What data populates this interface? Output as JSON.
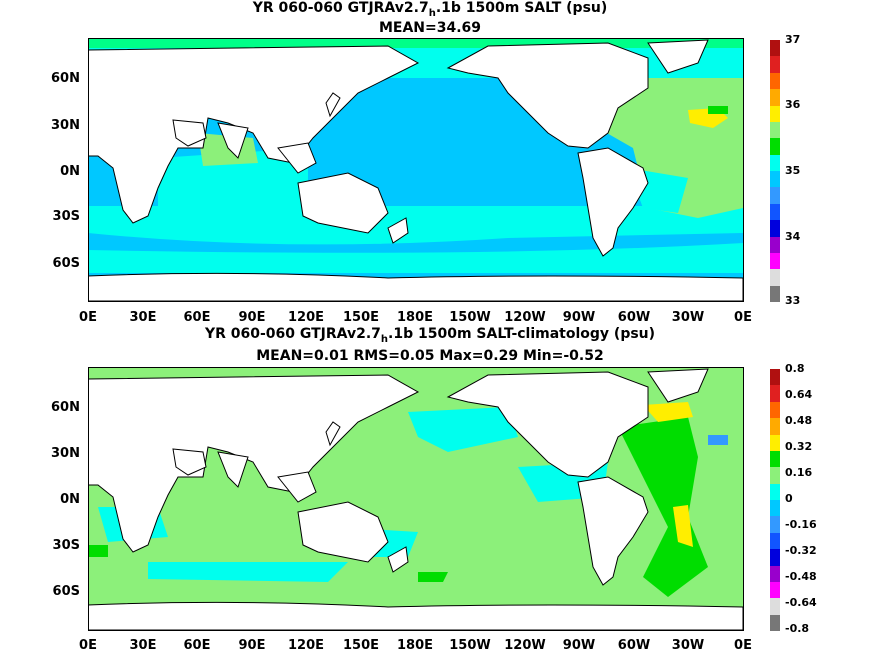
{
  "panel1": {
    "title_pre": "YR 060-060 GTJRAv2.7",
    "title_sub": "h",
    "title_post": ".1b 1500m SALT (psu)",
    "stats": "MEAN=34.69",
    "colorbar_labels": [
      "37",
      "36",
      "35",
      "34",
      "33"
    ],
    "colorbar_colors": [
      "#b01010",
      "#e02020",
      "#ff6600",
      "#ffaa00",
      "#ffee00",
      "#8cf07a",
      "#00dd00",
      "#00ffee",
      "#00c8ff",
      "#3399ff",
      "#1155ff",
      "#0000dd",
      "#9900cc",
      "#ff00ff",
      "#dddddd",
      "#777777"
    ]
  },
  "panel2": {
    "title_pre": "YR 060-060 GTJRAv2.7",
    "title_sub": "h",
    "title_post": ".1b 1500m SALT-climatology (psu)",
    "stats": "MEAN=0.01   RMS=0.05   Max=0.29   Min=-0.52",
    "colorbar_labels": [
      "0.8",
      "0.64",
      "0.48",
      "0.32",
      "0.16",
      "0",
      "-0.16",
      "-0.32",
      "-0.48",
      "-0.64",
      "-0.8"
    ],
    "colorbar_colors": [
      "#b01010",
      "#e02020",
      "#ff6600",
      "#ffaa00",
      "#ffee00",
      "#00dd00",
      "#8cf07a",
      "#00ffee",
      "#00c8ff",
      "#3399ff",
      "#1155ff",
      "#0000dd",
      "#9900cc",
      "#ff00ff",
      "#dddddd",
      "#777777"
    ]
  },
  "axes": {
    "y_ticks": [
      "60N",
      "30N",
      "0N",
      "30S",
      "60S"
    ],
    "x_ticks": [
      "0E",
      "30E",
      "60E",
      "90E",
      "120E",
      "150E",
      "180E",
      "150W",
      "120W",
      "90W",
      "60W",
      "30W",
      "0E"
    ]
  },
  "colors": {
    "land": "#ffffff",
    "coast": "#000000"
  }
}
